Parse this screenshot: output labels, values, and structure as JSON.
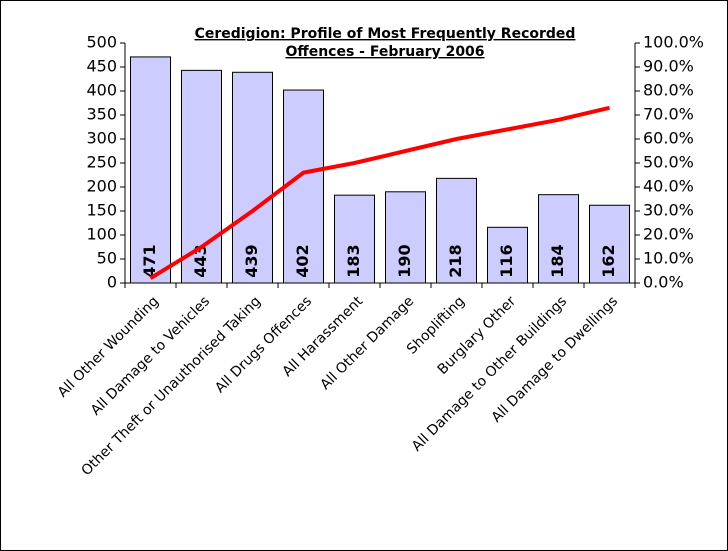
{
  "chart_data": {
    "type": "bar",
    "title": [
      "Ceredigion: Profile of Most Frequently Recorded",
      "Offences - February 2006"
    ],
    "categories": [
      "All Other Wounding",
      "All Damage to Vehicles",
      "Other Theft or Unauthorised Taking",
      "All Drugs Offences",
      "All Harassment",
      "All Other Damage",
      "Shoplifting",
      "Burglary Other",
      "All Damage to Other Buildings",
      "All Damage to Dwellings"
    ],
    "series": [
      {
        "type": "bar",
        "color": "#ccccff",
        "values": [
          471,
          443,
          439,
          402,
          183,
          190,
          218,
          116,
          184,
          162
        ]
      },
      {
        "type": "line",
        "axis": "y2",
        "color": "#ff0000",
        "values": [
          2,
          15,
          30,
          46,
          50,
          55,
          60,
          64,
          68,
          73
        ]
      }
    ],
    "ylim": [
      0,
      500
    ],
    "yticks": [
      0,
      50,
      100,
      150,
      200,
      250,
      300,
      350,
      400,
      450,
      500
    ],
    "y2lim": [
      0,
      100
    ],
    "y2ticks": [
      {
        "value": 0,
        "label": "0.0%"
      },
      {
        "value": 10,
        "label": "10.0%"
      },
      {
        "value": 20,
        "label": "20.0%"
      },
      {
        "value": 30,
        "label": "30.0%"
      },
      {
        "value": 40,
        "label": "40.0%"
      },
      {
        "value": 50,
        "label": "50.0%"
      },
      {
        "value": 60,
        "label": "60.0%"
      },
      {
        "value": 70,
        "label": "70.0%"
      },
      {
        "value": 80,
        "label": "80.0%"
      },
      {
        "value": 90,
        "label": "90.0%"
      },
      {
        "value": 100,
        "label": "100.0%"
      }
    ]
  }
}
